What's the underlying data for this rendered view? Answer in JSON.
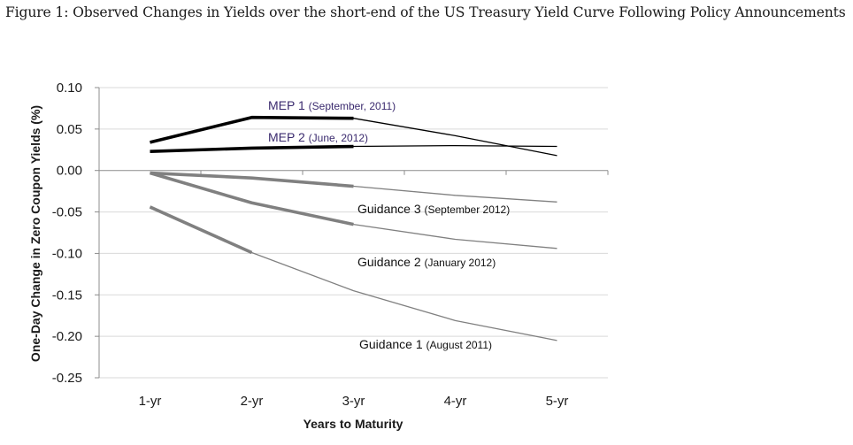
{
  "figure_title": "Figure 1: Observed Changes in Yields over the short-end of the US Treasury Yield Curve Following Policy Announcements",
  "chart_data": {
    "type": "line",
    "xlabel": "Years to Maturity",
    "ylabel": "One-Day Change in Zero Coupon Yields (%)",
    "categories": [
      "1-yr",
      "2-yr",
      "3-yr",
      "4-yr",
      "5-yr"
    ],
    "ylim": [
      -0.25,
      0.1
    ],
    "yticks": [
      0.1,
      0.05,
      0.0,
      -0.05,
      -0.1,
      -0.15,
      -0.2,
      -0.25
    ],
    "ytick_labels": [
      "0.10",
      "0.05",
      "0.00",
      "-0.05",
      "-0.10",
      "-0.15",
      "-0.20",
      "-0.25"
    ],
    "grid": true,
    "series": [
      {
        "key": "mep1",
        "name": "MEP 1",
        "name_suffix": "(September, 2011)",
        "values": [
          0.034,
          0.064,
          0.063,
          0.042,
          0.018
        ],
        "color": "#000000",
        "bold_until": 2,
        "label_color": "#3a2a6e"
      },
      {
        "key": "mep2",
        "name": "MEP 2",
        "name_suffix": "(June, 2012)",
        "values": [
          0.023,
          0.027,
          0.029,
          0.03,
          0.029
        ],
        "color": "#000000",
        "bold_until": 2,
        "label_color": "#3a2a6e"
      },
      {
        "key": "g3",
        "name": "Guidance 3",
        "name_suffix": "(September 2012)",
        "values": [
          -0.003,
          -0.009,
          -0.019,
          -0.03,
          -0.038
        ],
        "color": "#808080",
        "bold_until": 2,
        "label_color": "#111111"
      },
      {
        "key": "g2",
        "name": "Guidance 2",
        "name_suffix": "(January 2012)",
        "values": [
          -0.003,
          -0.039,
          -0.065,
          -0.083,
          -0.094
        ],
        "color": "#808080",
        "bold_until": 2,
        "label_color": "#111111"
      },
      {
        "key": "g1",
        "name": "Guidance 1",
        "name_suffix": "(August 2011)",
        "values": [
          -0.044,
          -0.099,
          -0.145,
          -0.181,
          -0.205
        ],
        "color": "#808080",
        "bold_until": 1,
        "label_color": "#111111"
      }
    ]
  }
}
